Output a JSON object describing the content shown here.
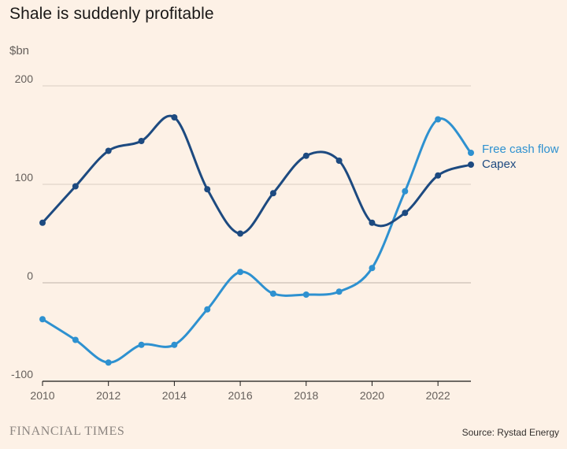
{
  "header": {
    "title": "Shale is suddenly profitable",
    "unit": "$bn"
  },
  "footer": {
    "brand": "FINANCIAL TIMES",
    "source": "Source: Rystad Energy"
  },
  "colors": {
    "background": "#fdf1e6",
    "free_cash_flow": "#2e91d0",
    "capex": "#1d4a80",
    "grid": "#d9cdc3",
    "zero_line": "#bfb4aa"
  },
  "chart_data": {
    "type": "line",
    "title": "Shale is suddenly profitable",
    "ylabel": "$bn",
    "xlabel": "",
    "x": [
      2010,
      2011,
      2012,
      2013,
      2014,
      2015,
      2016,
      2017,
      2018,
      2019,
      2020,
      2021,
      2022,
      2023
    ],
    "ylim": [
      -100,
      200
    ],
    "yticks": [
      -100,
      0,
      100,
      200
    ],
    "xticks": [
      2010,
      2012,
      2014,
      2016,
      2018,
      2020,
      2022
    ],
    "grid": true,
    "legend": "inline-right",
    "series": [
      {
        "name": "Free cash flow",
        "color": "#2e91d0",
        "values": [
          -37,
          -58,
          -81,
          -63,
          -63,
          -27,
          11,
          -11,
          -12,
          -9,
          15,
          93,
          166,
          132
        ]
      },
      {
        "name": "Capex",
        "color": "#1d4a80",
        "values": [
          61,
          98,
          134,
          144,
          168,
          95,
          50,
          91,
          129,
          124,
          61,
          71,
          109,
          120
        ]
      }
    ]
  }
}
